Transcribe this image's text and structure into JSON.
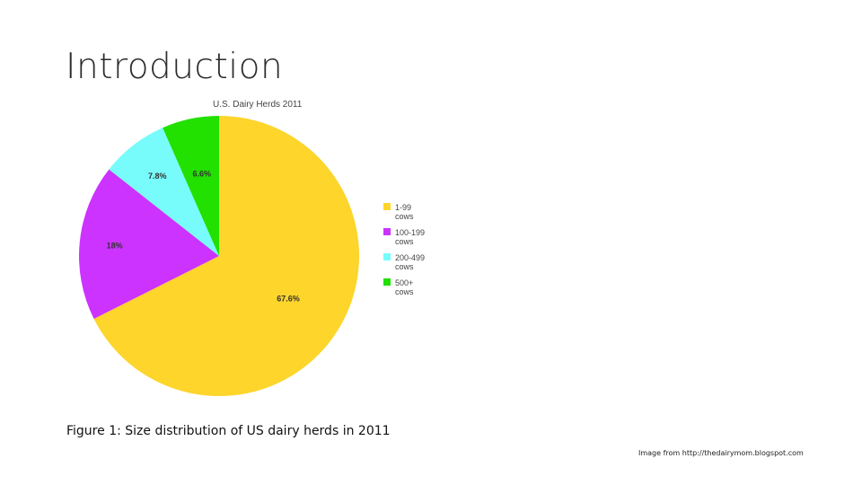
{
  "slide": {
    "title": "Introduction",
    "caption": "Figure 1: Size distribution of US dairy herds in 2011",
    "credit": "Image from http://thedairymom.blogspot.com"
  },
  "chart_data": {
    "type": "pie",
    "title": "U.S. Dairy Herds 2011",
    "legend_position": "right",
    "slices": [
      {
        "name": "1-99 cows",
        "value": 67.6,
        "label": "67.6%",
        "color": "#fdd52b"
      },
      {
        "name": "100-199 cows",
        "value": 18,
        "label": "18%",
        "color": "#cc33ff"
      },
      {
        "name": "200-499 cows",
        "value": 7.8,
        "label": "7.8%",
        "color": "#77fcfb"
      },
      {
        "name": "500+ cows",
        "value": 6.6,
        "label": "6.6%",
        "color": "#22e000"
      }
    ]
  }
}
